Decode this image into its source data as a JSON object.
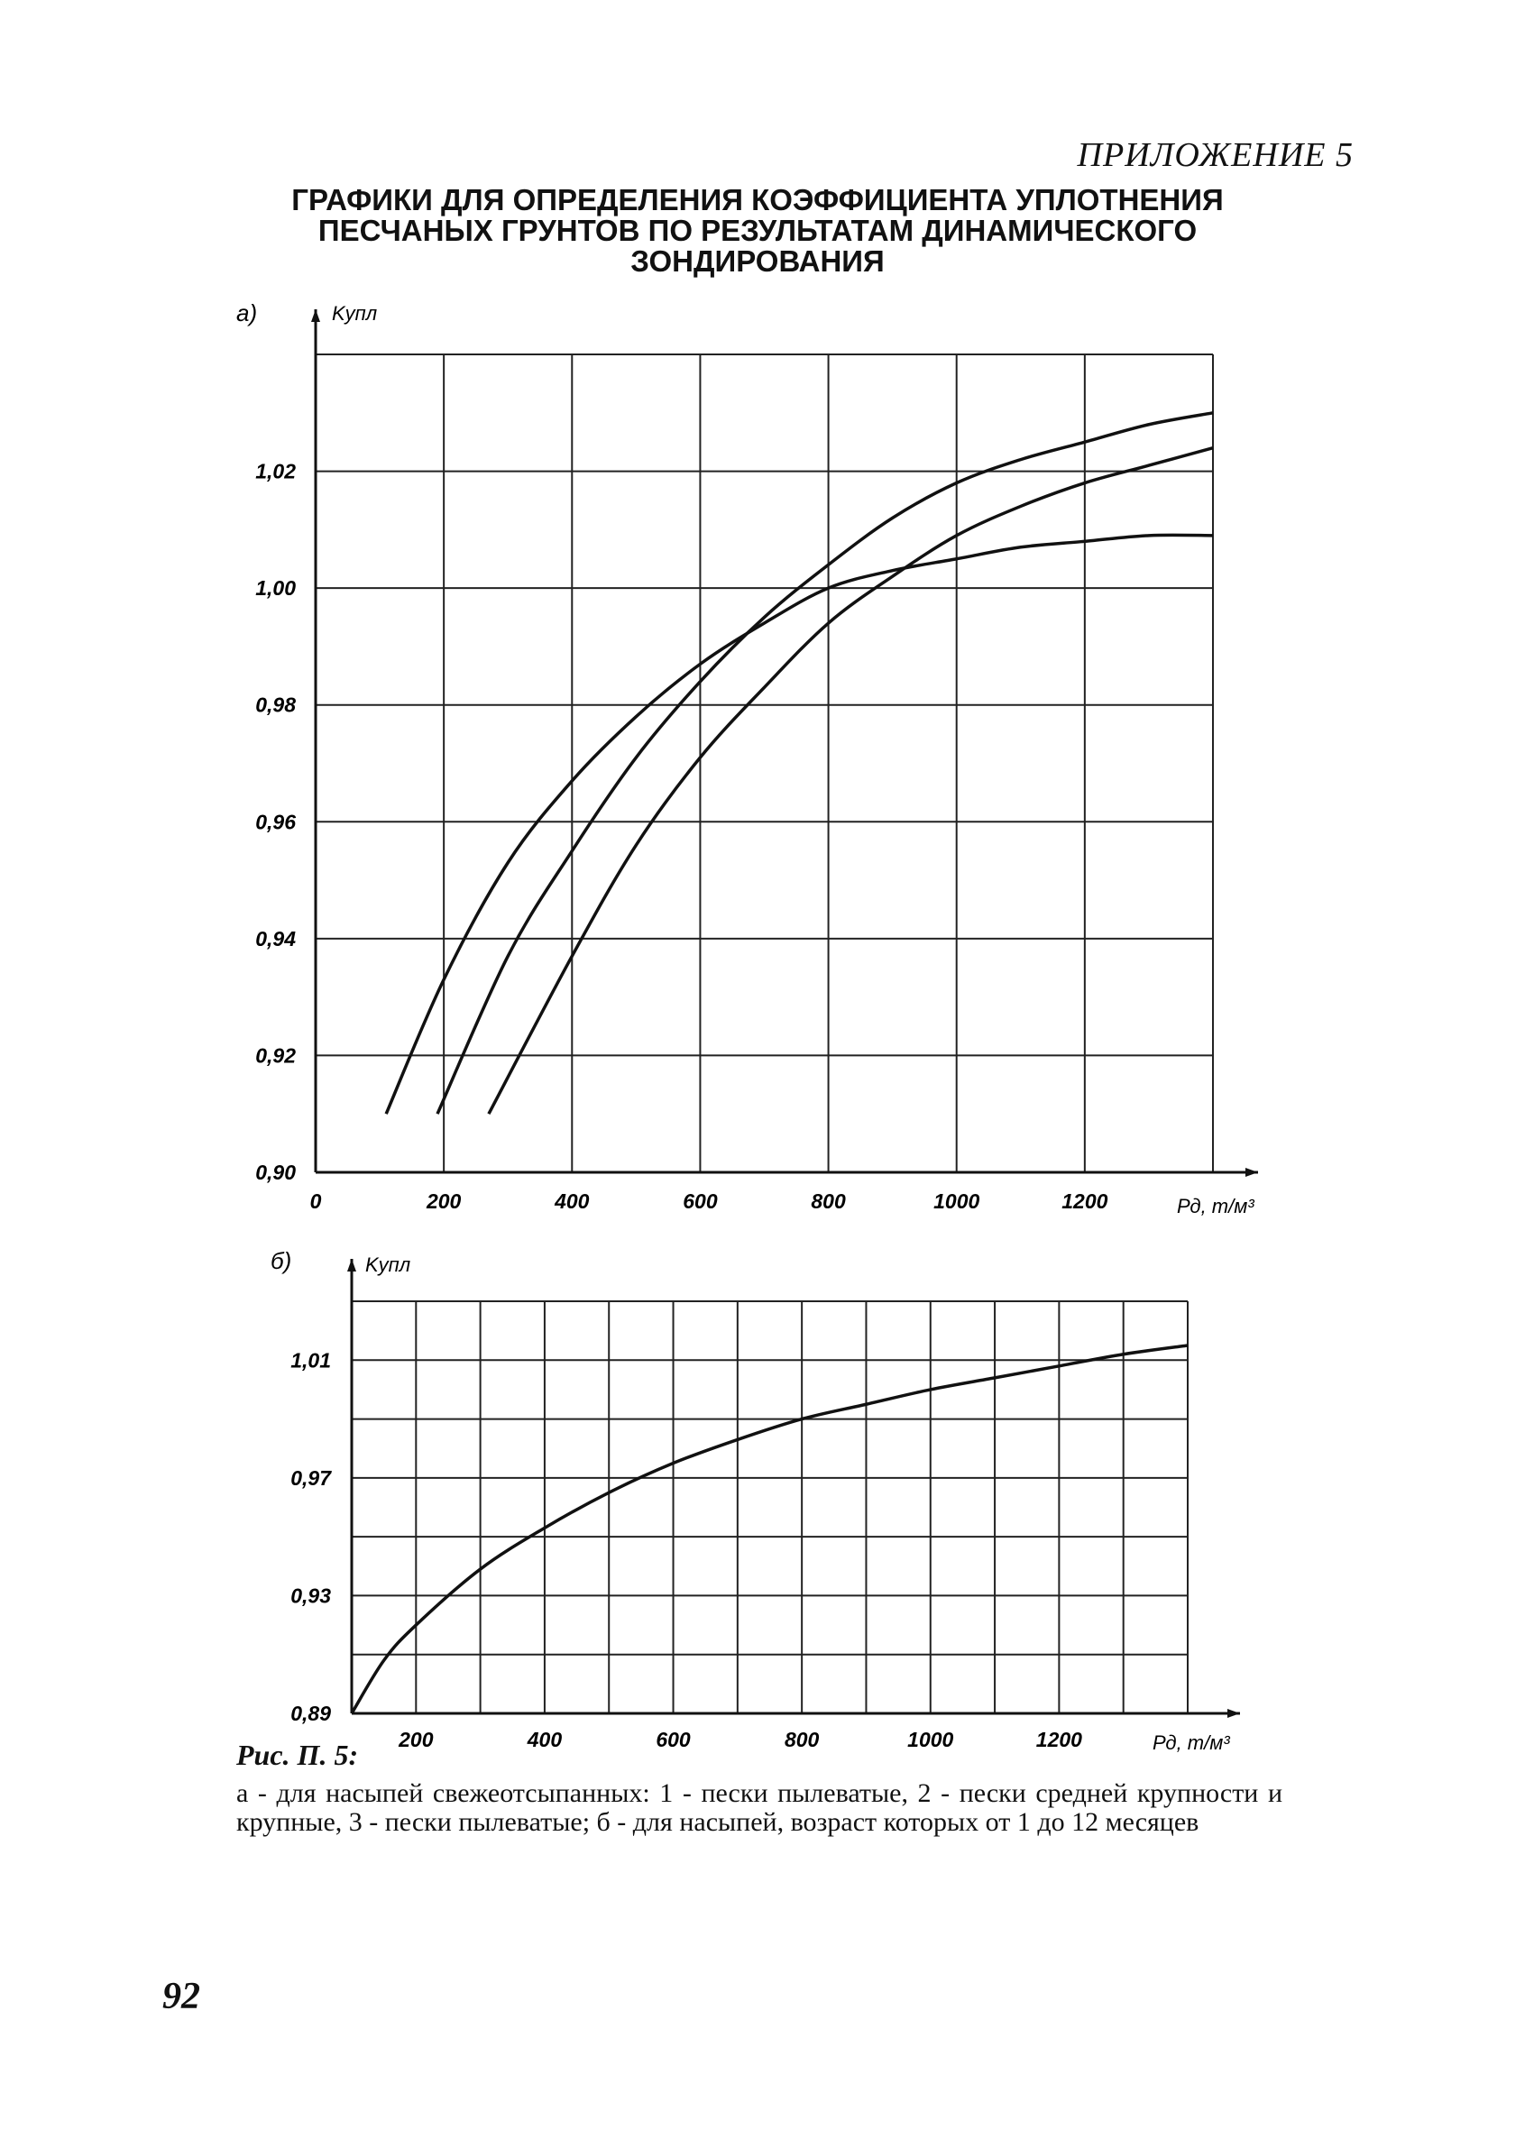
{
  "header": {
    "appendix": "ПРИЛОЖЕНИЕ 5",
    "title_lines": [
      "ГРАФИКИ ДЛЯ ОПРЕДЕЛЕНИЯ КОЭФФИЦИЕНТА УПЛОТНЕНИЯ",
      "ПЕСЧАНЫХ ГРУНТОВ ПО РЕЗУЛЬТАТАМ ДИНАМИЧЕСКОГО",
      "ЗОНДИРОВАНИЯ"
    ]
  },
  "chart_data": [
    {
      "type": "line",
      "panel_label": "а)",
      "ylabel": "Kупл",
      "xlabel": "Рд, т/м³",
      "xlim": [
        0,
        1400
      ],
      "ylim": [
        0.9,
        1.04
      ],
      "x_ticks": [
        0,
        200,
        400,
        600,
        800,
        1000,
        1200
      ],
      "x_tick_labels": [
        "0",
        "200",
        "400",
        "600",
        "800",
        "1000",
        "1200"
      ],
      "y_ticks": [
        0.9,
        0.92,
        0.94,
        0.96,
        0.98,
        1.0,
        1.02
      ],
      "y_tick_labels": [
        "0,90",
        "0,92",
        "0,94",
        "0,96",
        "0,98",
        "1,00",
        "1,02"
      ],
      "grid": true,
      "series": [
        {
          "x": [
            110,
            200,
            300,
            400,
            500,
            600,
            700,
            800,
            900,
            1000,
            1100,
            1200,
            1300,
            1400
          ],
          "y": [
            0.91,
            0.933,
            0.953,
            0.967,
            0.978,
            0.987,
            0.994,
            1.0,
            1.003,
            1.005,
            1.007,
            1.008,
            1.009,
            1.009
          ]
        },
        {
          "x": [
            190,
            300,
            400,
            500,
            600,
            700,
            800,
            900,
            1000,
            1100,
            1200,
            1300,
            1400
          ],
          "y": [
            0.91,
            0.937,
            0.955,
            0.971,
            0.984,
            0.995,
            1.004,
            1.012,
            1.018,
            1.022,
            1.025,
            1.028,
            1.03
          ]
        },
        {
          "x": [
            270,
            400,
            500,
            600,
            700,
            800,
            900,
            1000,
            1100,
            1200,
            1300,
            1400
          ],
          "y": [
            0.91,
            0.937,
            0.956,
            0.971,
            0.983,
            0.994,
            1.002,
            1.009,
            1.014,
            1.018,
            1.021,
            1.024
          ]
        }
      ]
    },
    {
      "type": "line",
      "panel_label": "б)",
      "ylabel": "Kупл",
      "xlabel": "Рд, т/м³",
      "xlim": [
        100,
        1400
      ],
      "ylim": [
        0.89,
        1.03
      ],
      "x_ticks": [
        200,
        400,
        600,
        800,
        1000,
        1200
      ],
      "x_tick_labels": [
        "200",
        "400",
        "600",
        "800",
        "1000",
        "1200"
      ],
      "y_ticks": [
        0.89,
        0.93,
        0.97,
        1.01
      ],
      "y_tick_labels": [
        "0,89",
        "0,93",
        "0,97",
        "1,01"
      ],
      "grid": true,
      "series": [
        {
          "x": [
            100,
            150,
            200,
            300,
            400,
            500,
            600,
            700,
            800,
            900,
            1000,
            1100,
            1200,
            1300,
            1400
          ],
          "y": [
            0.89,
            0.908,
            0.92,
            0.939,
            0.953,
            0.965,
            0.975,
            0.983,
            0.99,
            0.995,
            1.0,
            1.004,
            1.008,
            1.012,
            1.015
          ]
        }
      ]
    }
  ],
  "caption": {
    "head": "Рис. П. 5:",
    "body": "а - для насыпей свежеотсыпанных: 1 - пески пылеватые, 2 - пески средней крупности и крупные, 3 - пески пылеватые; б - для насыпей, возраст которых от 1 до 12 месяцев"
  },
  "page_number": "92"
}
